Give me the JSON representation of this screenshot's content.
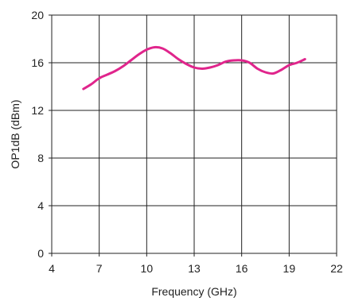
{
  "chart_data": {
    "type": "line",
    "xlabel": "Frequency (GHz)",
    "ylabel": "OP1dB (dBm)",
    "xlim": [
      4,
      22
    ],
    "ylim": [
      0,
      20
    ],
    "xticks": [
      4,
      7,
      10,
      13,
      16,
      19,
      22
    ],
    "yticks": [
      0,
      4,
      8,
      12,
      16,
      20
    ],
    "grid": true,
    "series": [
      {
        "color": "#e0258c",
        "x": [
          6.0,
          6.5,
          7.0,
          7.5,
          8.0,
          8.5,
          9.0,
          9.5,
          10.0,
          10.5,
          11.0,
          11.5,
          12.0,
          12.5,
          13.0,
          13.5,
          14.0,
          14.5,
          15.0,
          15.5,
          16.0,
          16.5,
          17.0,
          17.5,
          18.0,
          18.5,
          19.0,
          19.5,
          20.0
        ],
        "y": [
          13.8,
          14.2,
          14.7,
          15.0,
          15.3,
          15.7,
          16.2,
          16.7,
          17.1,
          17.3,
          17.2,
          16.8,
          16.3,
          15.9,
          15.6,
          15.5,
          15.6,
          15.8,
          16.1,
          16.2,
          16.2,
          16.0,
          15.5,
          15.2,
          15.1,
          15.4,
          15.8,
          16.0,
          16.3
        ]
      }
    ]
  }
}
